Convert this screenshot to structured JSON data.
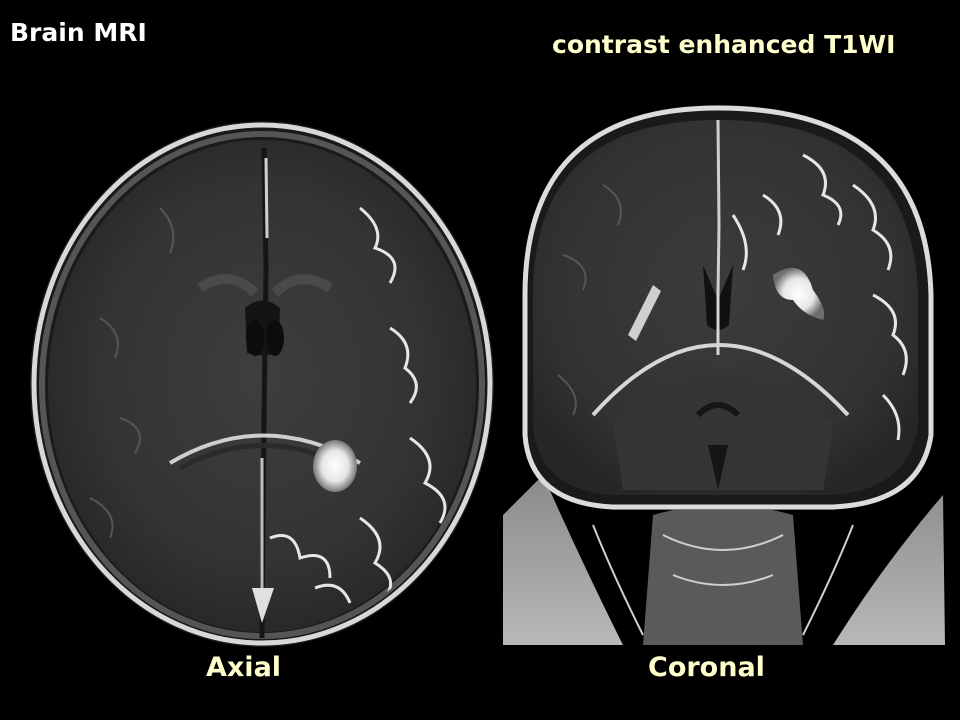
{
  "header": {
    "title": "Brain MRI",
    "sequence": "contrast enhanced T1WI"
  },
  "images": {
    "axial": {
      "label": "Axial"
    },
    "coronal": {
      "label": "Coronal"
    }
  },
  "colors": {
    "background": "#000000",
    "title_text": "#ffffff",
    "caption_text": "#ffffcc",
    "tissue_dark": "#2c2c2c",
    "tissue_mid": "#3a3a3a",
    "skull_bright": "#e8e8e8",
    "enhancement": "#f2f2f2"
  }
}
